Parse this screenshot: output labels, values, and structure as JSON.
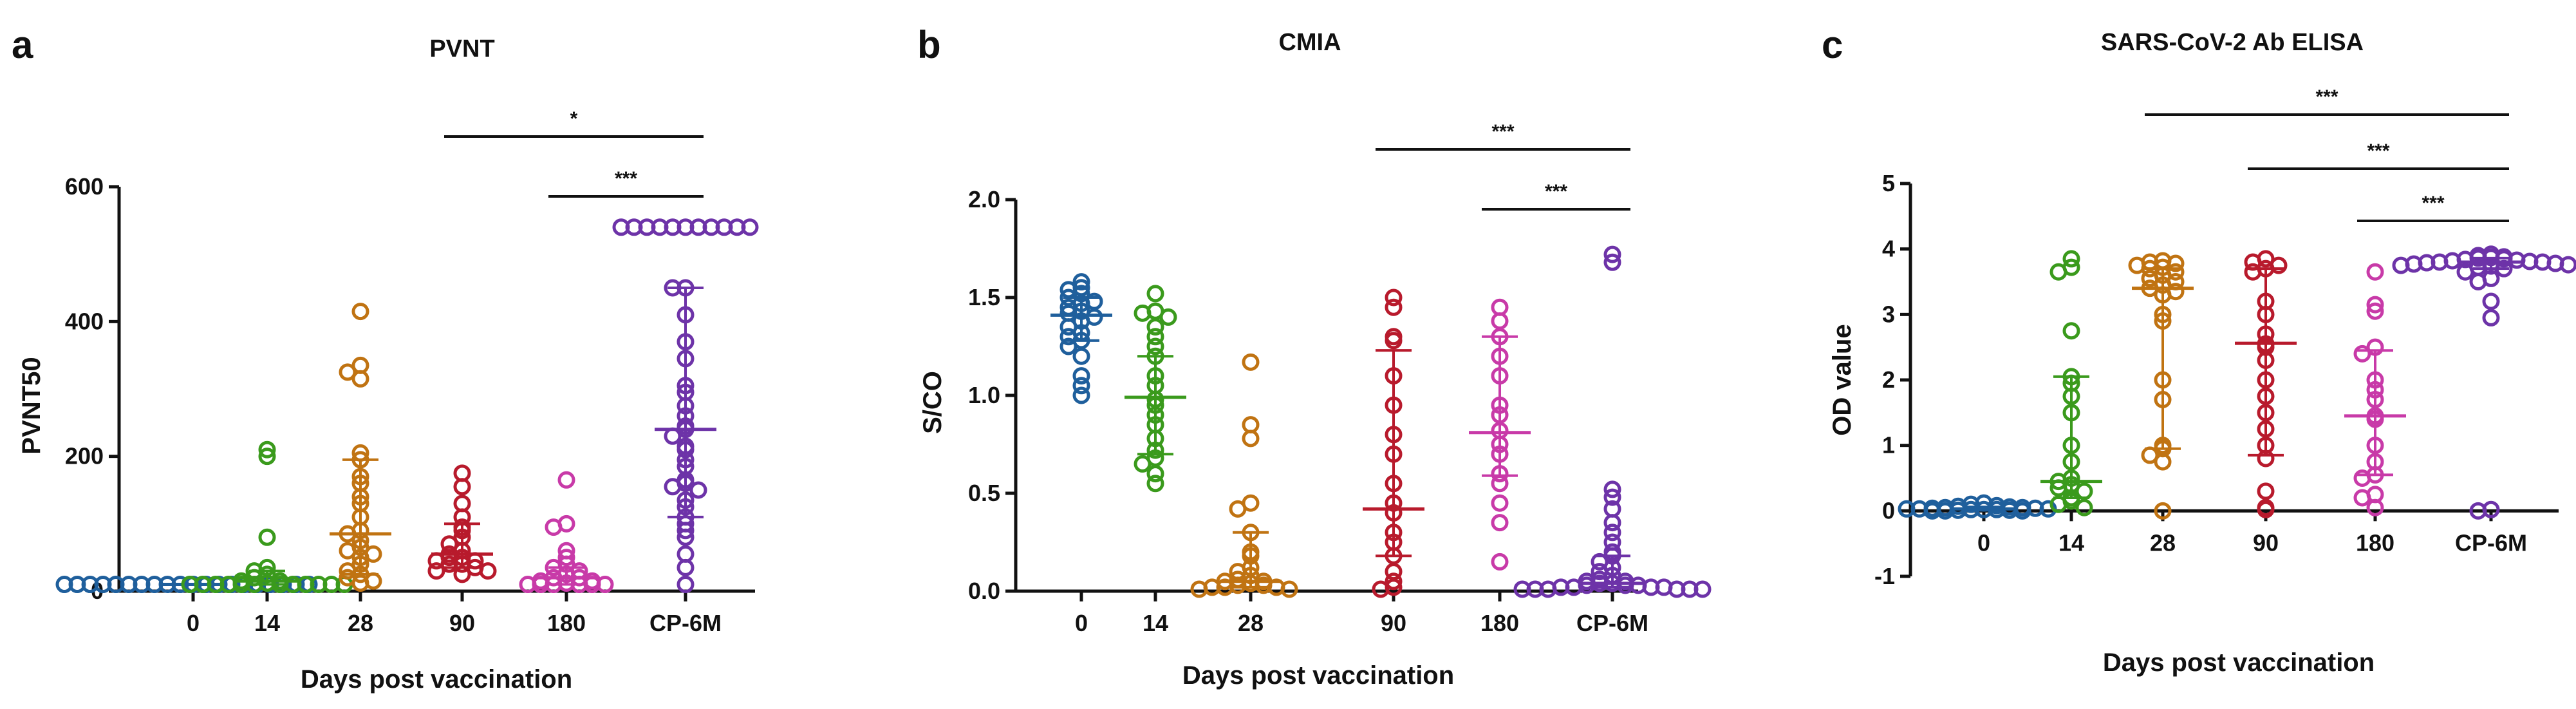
{
  "figure": {
    "categories": [
      "0",
      "14",
      "28",
      "90",
      "180",
      "CP-6M"
    ],
    "group_colors": [
      "#1f5f9c",
      "#3a9a1c",
      "#c07312",
      "#b81a2c",
      "#c83aa8",
      "#6d33a8"
    ]
  },
  "chart_data": [
    {
      "type": "scatter",
      "panel_letter": "a",
      "title": "PVNT",
      "xlabel": "Days post vaccination",
      "ylabel": "PVNT50",
      "ylim": [
        0,
        600
      ],
      "yticks": [
        "0",
        "200",
        "400",
        "600"
      ],
      "categories": [
        "0",
        "14",
        "28",
        "90",
        "180",
        "CP-6M"
      ],
      "series": [
        {
          "name": "0",
          "values": [
            10,
            10,
            10,
            10,
            10,
            10,
            10,
            10,
            10,
            10,
            10,
            10,
            10,
            10,
            10,
            10,
            10,
            10,
            10,
            10
          ],
          "median": 10,
          "q1": 10,
          "q3": 10
        },
        {
          "name": "14",
          "values": [
            210,
            200,
            80,
            35,
            30,
            25,
            20,
            15,
            15,
            12,
            10,
            10,
            10,
            10,
            10,
            10,
            10,
            10,
            10,
            10,
            10,
            10
          ],
          "median": 15,
          "q1": 10,
          "q3": 30
        },
        {
          "name": "28",
          "values": [
            415,
            335,
            325,
            315,
            205,
            195,
            170,
            160,
            140,
            130,
            110,
            90,
            85,
            75,
            65,
            60,
            55,
            50,
            40,
            30,
            25,
            20,
            15,
            12
          ],
          "median": 85,
          "q1": 25,
          "q3": 195
        },
        {
          "name": "90",
          "values": [
            175,
            155,
            130,
            110,
            95,
            90,
            80,
            70,
            60,
            55,
            50,
            50,
            45,
            45,
            40,
            40,
            35,
            30,
            30,
            25
          ],
          "median": 55,
          "q1": 35,
          "q3": 100
        },
        {
          "name": "180",
          "values": [
            165,
            100,
            95,
            60,
            50,
            40,
            35,
            30,
            25,
            20,
            20,
            15,
            15,
            12,
            10,
            10,
            10,
            10,
            10,
            10
          ],
          "median": 20,
          "q1": 10,
          "q3": 35
        },
        {
          "name": "CP-6M",
          "values": [
            540,
            540,
            540,
            540,
            540,
            540,
            540,
            540,
            540,
            540,
            540,
            450,
            450,
            410,
            370,
            345,
            305,
            295,
            275,
            260,
            245,
            240,
            230,
            215,
            210,
            195,
            185,
            165,
            160,
            155,
            150,
            135,
            125,
            110,
            100,
            90,
            80,
            55,
            35,
            10
          ],
          "median": 240,
          "q1": 110,
          "q3": 450
        }
      ],
      "significance": [
        {
          "from": "90",
          "to": "CP-6M",
          "label": "*"
        },
        {
          "from": "180",
          "to": "CP-6M",
          "label": "***"
        }
      ]
    },
    {
      "type": "scatter",
      "panel_letter": "b",
      "title": "CMIA",
      "xlabel": "Days post vaccination",
      "ylabel": "S/CO",
      "ylim": [
        0,
        2.0
      ],
      "yticks": [
        "0.0",
        "0.5",
        "1.0",
        "1.5",
        "2.0"
      ],
      "categories": [
        "0",
        "14",
        "28",
        "90",
        "180",
        "CP-6M"
      ],
      "series": [
        {
          "name": "0",
          "values": [
            1.58,
            1.55,
            1.54,
            1.52,
            1.5,
            1.48,
            1.47,
            1.45,
            1.43,
            1.42,
            1.4,
            1.38,
            1.35,
            1.32,
            1.3,
            1.28,
            1.25,
            1.2,
            1.1,
            1.05,
            1.0
          ],
          "median": 1.41,
          "q1": 1.28,
          "q3": 1.5
        },
        {
          "name": "14",
          "values": [
            1.52,
            1.43,
            1.42,
            1.4,
            1.35,
            1.3,
            1.25,
            1.2,
            1.1,
            1.05,
            0.98,
            0.95,
            0.9,
            0.85,
            0.78,
            0.72,
            0.68,
            0.65,
            0.6,
            0.55
          ],
          "median": 0.99,
          "q1": 0.7,
          "q3": 1.2
        },
        {
          "name": "28",
          "values": [
            1.17,
            0.85,
            0.78,
            0.45,
            0.42,
            0.3,
            0.2,
            0.18,
            0.12,
            0.1,
            0.08,
            0.06,
            0.05,
            0.05,
            0.04,
            0.03,
            0.03,
            0.02,
            0.02,
            0.02,
            0.01,
            0.01
          ],
          "median": 0.05,
          "q1": 0.02,
          "q3": 0.3
        },
        {
          "name": "90",
          "values": [
            1.5,
            1.45,
            1.3,
            1.28,
            1.1,
            0.95,
            0.8,
            0.7,
            0.55,
            0.45,
            0.4,
            0.3,
            0.25,
            0.18,
            0.1,
            0.05,
            0.02,
            0.01
          ],
          "median": 0.42,
          "q1": 0.18,
          "q3": 1.23
        },
        {
          "name": "180",
          "values": [
            1.45,
            1.38,
            1.3,
            1.2,
            1.1,
            0.95,
            0.9,
            0.82,
            0.75,
            0.7,
            0.6,
            0.55,
            0.45,
            0.35,
            0.15
          ],
          "median": 0.81,
          "q1": 0.59,
          "q3": 1.3
        },
        {
          "name": "CP-6M",
          "values": [
            1.72,
            1.68,
            0.52,
            0.48,
            0.42,
            0.35,
            0.3,
            0.25,
            0.2,
            0.18,
            0.15,
            0.12,
            0.1,
            0.08,
            0.06,
            0.05,
            0.05,
            0.04,
            0.04,
            0.03,
            0.03,
            0.03,
            0.02,
            0.02,
            0.02,
            0.02,
            0.01,
            0.01,
            0.01,
            0.01,
            0.01,
            0.01
          ],
          "median": 0.04,
          "q1": 0.02,
          "q3": 0.18
        }
      ],
      "significance": [
        {
          "from": "90",
          "to": "CP-6M",
          "label": "***"
        },
        {
          "from": "180",
          "to": "CP-6M",
          "label": "***"
        }
      ]
    },
    {
      "type": "scatter",
      "panel_letter": "c",
      "title": "SARS-CoV-2 Ab ELISA",
      "xlabel": "Days post vaccination",
      "ylabel": "OD value",
      "ylim": [
        -1,
        5
      ],
      "yticks": [
        "-1",
        "0",
        "1",
        "2",
        "3",
        "4",
        "5"
      ],
      "categories": [
        "0",
        "14",
        "28",
        "90",
        "180",
        "CP-6M"
      ],
      "series": [
        {
          "name": "0",
          "values": [
            0.12,
            0.1,
            0.08,
            0.07,
            0.06,
            0.05,
            0.05,
            0.04,
            0.04,
            0.03,
            0.03,
            0.03,
            0.02,
            0.02,
            0.02,
            0.01,
            0.01,
            0.0,
            0.0,
            0.0
          ],
          "median": 0.03,
          "q1": 0.01,
          "q3": 0.06
        },
        {
          "name": "14",
          "values": [
            3.85,
            3.72,
            3.65,
            2.75,
            2.05,
            1.95,
            1.75,
            1.5,
            1.0,
            0.75,
            0.5,
            0.45,
            0.4,
            0.35,
            0.3,
            0.2,
            0.15,
            0.1,
            0.05
          ],
          "median": 0.45,
          "q1": 0.2,
          "q3": 2.05
        },
        {
          "name": "28",
          "values": [
            3.82,
            3.8,
            3.78,
            3.75,
            3.72,
            3.7,
            3.65,
            3.6,
            3.55,
            3.5,
            3.45,
            3.4,
            3.35,
            3.3,
            3.0,
            2.9,
            2.0,
            1.7,
            1.0,
            0.95,
            0.85,
            0.75,
            0.0
          ],
          "median": 3.4,
          "q1": 0.95,
          "q3": 3.7
        },
        {
          "name": "90",
          "values": [
            3.85,
            3.8,
            3.75,
            3.7,
            3.65,
            3.2,
            3.0,
            2.7,
            2.55,
            2.5,
            2.3,
            2.0,
            1.75,
            1.5,
            1.25,
            1.0,
            0.8,
            0.3,
            0.05,
            0.02
          ],
          "median": 2.56,
          "q1": 0.85,
          "q3": 3.7
        },
        {
          "name": "180",
          "values": [
            3.65,
            3.15,
            3.05,
            2.5,
            2.4,
            2.0,
            1.85,
            1.7,
            1.45,
            1.4,
            1.0,
            0.75,
            0.55,
            0.5,
            0.25,
            0.2,
            0.05
          ],
          "median": 1.45,
          "q1": 0.55,
          "q3": 2.45
        },
        {
          "name": "CP-6M",
          "values": [
            3.92,
            3.9,
            3.88,
            3.87,
            3.86,
            3.85,
            3.84,
            3.83,
            3.82,
            3.81,
            3.8,
            3.8,
            3.79,
            3.78,
            3.77,
            3.76,
            3.75,
            3.74,
            3.72,
            3.7,
            3.65,
            3.55,
            3.5,
            3.2,
            2.95,
            0.02,
            0.0
          ],
          "median": 3.8,
          "q1": 3.7,
          "q3": 3.86
        }
      ],
      "significance": [
        {
          "from": "28",
          "to": "CP-6M",
          "label": "***"
        },
        {
          "from": "90",
          "to": "CP-6M",
          "label": "***"
        },
        {
          "from": "180",
          "to": "CP-6M",
          "label": "***"
        }
      ]
    }
  ]
}
